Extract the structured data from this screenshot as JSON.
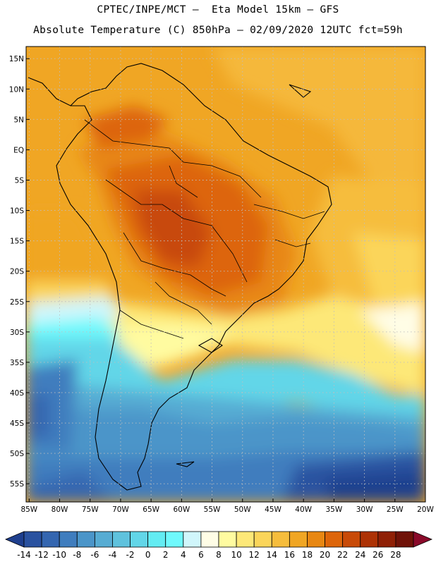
{
  "header": {
    "line1": "CPTEC/INPE/MCT –  Eta Model 15km – GFS",
    "line2": "Absolute Temperature (C) 850hPa – 02/09/2020 12UTC fct=59h"
  },
  "map": {
    "lat_labels": [
      "15N",
      "10N",
      "5N",
      "EQ",
      "5S",
      "10S",
      "15S",
      "20S",
      "25S",
      "30S",
      "35S",
      "40S",
      "45S",
      "50S",
      "55S"
    ],
    "lon_labels": [
      "85W",
      "80W",
      "75W",
      "70W",
      "65W",
      "60W",
      "55W",
      "50W",
      "45W",
      "40W",
      "35W",
      "30W",
      "25W",
      "20W"
    ],
    "grid": "dotted",
    "lat_range": [
      17,
      -58
    ],
    "lon_range": [
      -85.5,
      -20
    ]
  },
  "colorbar": {
    "tick_labels": [
      "-14",
      "-12",
      "-10",
      "-8",
      "-6",
      "-4",
      "-2",
      "0",
      "2",
      "4",
      "6",
      "8",
      "10",
      "12",
      "14",
      "16",
      "18",
      "20",
      "22",
      "24",
      "26",
      "28"
    ],
    "colors": [
      "#1f3f8e",
      "#2a52a0",
      "#3466b0",
      "#3f7dbe",
      "#4b95c9",
      "#57acd3",
      "#5fc2dd",
      "#62d6e8",
      "#63ecf2",
      "#6ff9fc",
      "#d0f6fb",
      "#fffde6",
      "#fffba0",
      "#fde878",
      "#fbd55a",
      "#f6bd3c",
      "#f0a624",
      "#e88712",
      "#dd650a",
      "#c84a07",
      "#ad3205",
      "#8f2006",
      "#6f1208",
      "#8a0a2a"
    ]
  }
}
